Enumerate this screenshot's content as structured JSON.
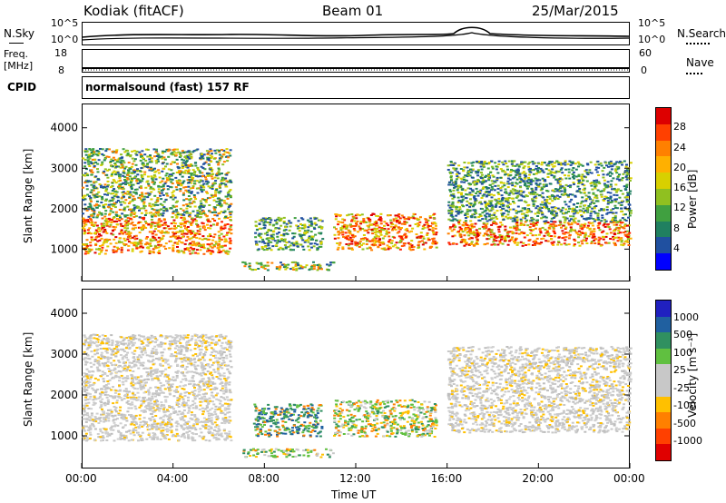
{
  "header": {
    "station": "Kodiak (fitACF)",
    "beam": "Beam 01",
    "date": "25/Mar/2015"
  },
  "nsky_panel": {
    "left_label": "N.Sky",
    "left_ticks": [
      "10^5",
      "10^0"
    ],
    "right_ticks": [
      "10^5",
      "10^0"
    ],
    "right_label": "N.Search"
  },
  "freq_panel": {
    "left_label_1": "Freq.",
    "left_label_2": "[MHz]",
    "left_ticks": [
      "18",
      "8"
    ],
    "right_ticks": [
      "60",
      "0"
    ],
    "right_label": "Nave"
  },
  "cpid": {
    "label": "CPID",
    "value": "normalsound (fast) 157 RF"
  },
  "chart_data": [
    {
      "type": "heatmap",
      "title": "",
      "ylabel": "Slant Range [km]",
      "xlabel": "",
      "x_ticks": [
        "00:00",
        "04:00",
        "08:00",
        "12:00",
        "16:00",
        "20:00",
        "00:00"
      ],
      "y_ticks": [
        1000,
        2000,
        3000,
        4000
      ],
      "ylim": [
        200,
        4600
      ],
      "xlim_hours": [
        0,
        24
      ],
      "colorbar": {
        "label": "Power [dB]",
        "ticks": [
          "28",
          "24",
          "20",
          "16",
          "12",
          "8",
          "4"
        ],
        "colors": [
          "#dd0000",
          "#ff4000",
          "#ff8000",
          "#ffb000",
          "#d8d000",
          "#90c020",
          "#40a040",
          "#208060",
          "#2050a0",
          "#0000ff"
        ]
      },
      "regions": [
        {
          "t0": 0.0,
          "t1": 6.5,
          "r0": 900,
          "r1": 1800,
          "level": "high"
        },
        {
          "t0": 0.0,
          "t1": 6.5,
          "r0": 1800,
          "r1": 3500,
          "level": "mid"
        },
        {
          "t0": 7.0,
          "t1": 11.0,
          "r0": 500,
          "r1": 700,
          "level": "mid"
        },
        {
          "t0": 7.5,
          "t1": 10.5,
          "r0": 1000,
          "r1": 1800,
          "level": "low"
        },
        {
          "t0": 11.0,
          "t1": 15.5,
          "r0": 1000,
          "r1": 1900,
          "level": "high"
        },
        {
          "t0": 16.0,
          "t1": 24.0,
          "r0": 1100,
          "r1": 1700,
          "level": "high"
        },
        {
          "t0": 16.0,
          "t1": 24.0,
          "r0": 1700,
          "r1": 3200,
          "level": "low"
        }
      ]
    },
    {
      "type": "heatmap",
      "title": "",
      "ylabel": "Slant Range [km]",
      "xlabel": "Time UT",
      "x_ticks": [
        "00:00",
        "04:00",
        "08:00",
        "12:00",
        "16:00",
        "20:00",
        "00:00"
      ],
      "y_ticks": [
        1000,
        2000,
        3000,
        4000
      ],
      "ylim": [
        200,
        4600
      ],
      "xlim_hours": [
        0,
        24
      ],
      "colorbar": {
        "label": "Velocity [m s⁻¹]",
        "ticks": [
          "1000",
          "500",
          "100",
          "25",
          "-25",
          "-100",
          "-500",
          "-1000"
        ],
        "colors": [
          "#2020c0",
          "#2060a0",
          "#309060",
          "#60c040",
          "#c8c8c8",
          "#c8c8c8",
          "#ffc000",
          "#ff8000",
          "#ff4000",
          "#e00000"
        ]
      },
      "regions": [
        {
          "t0": 0.0,
          "t1": 6.5,
          "r0": 900,
          "r1": 1800,
          "level": "gray"
        },
        {
          "t0": 0.0,
          "t1": 6.5,
          "r0": 1800,
          "r1": 3500,
          "level": "gray"
        },
        {
          "t0": 7.0,
          "t1": 11.0,
          "r0": 500,
          "r1": 700,
          "level": "green"
        },
        {
          "t0": 7.5,
          "t1": 10.5,
          "r0": 1000,
          "r1": 1800,
          "level": "teal"
        },
        {
          "t0": 11.0,
          "t1": 15.5,
          "r0": 1000,
          "r1": 1900,
          "level": "green"
        },
        {
          "t0": 16.0,
          "t1": 24.0,
          "r0": 1100,
          "r1": 1700,
          "level": "gray"
        },
        {
          "t0": 16.0,
          "t1": 24.0,
          "r0": 1700,
          "r1": 3200,
          "level": "gray"
        }
      ]
    }
  ]
}
